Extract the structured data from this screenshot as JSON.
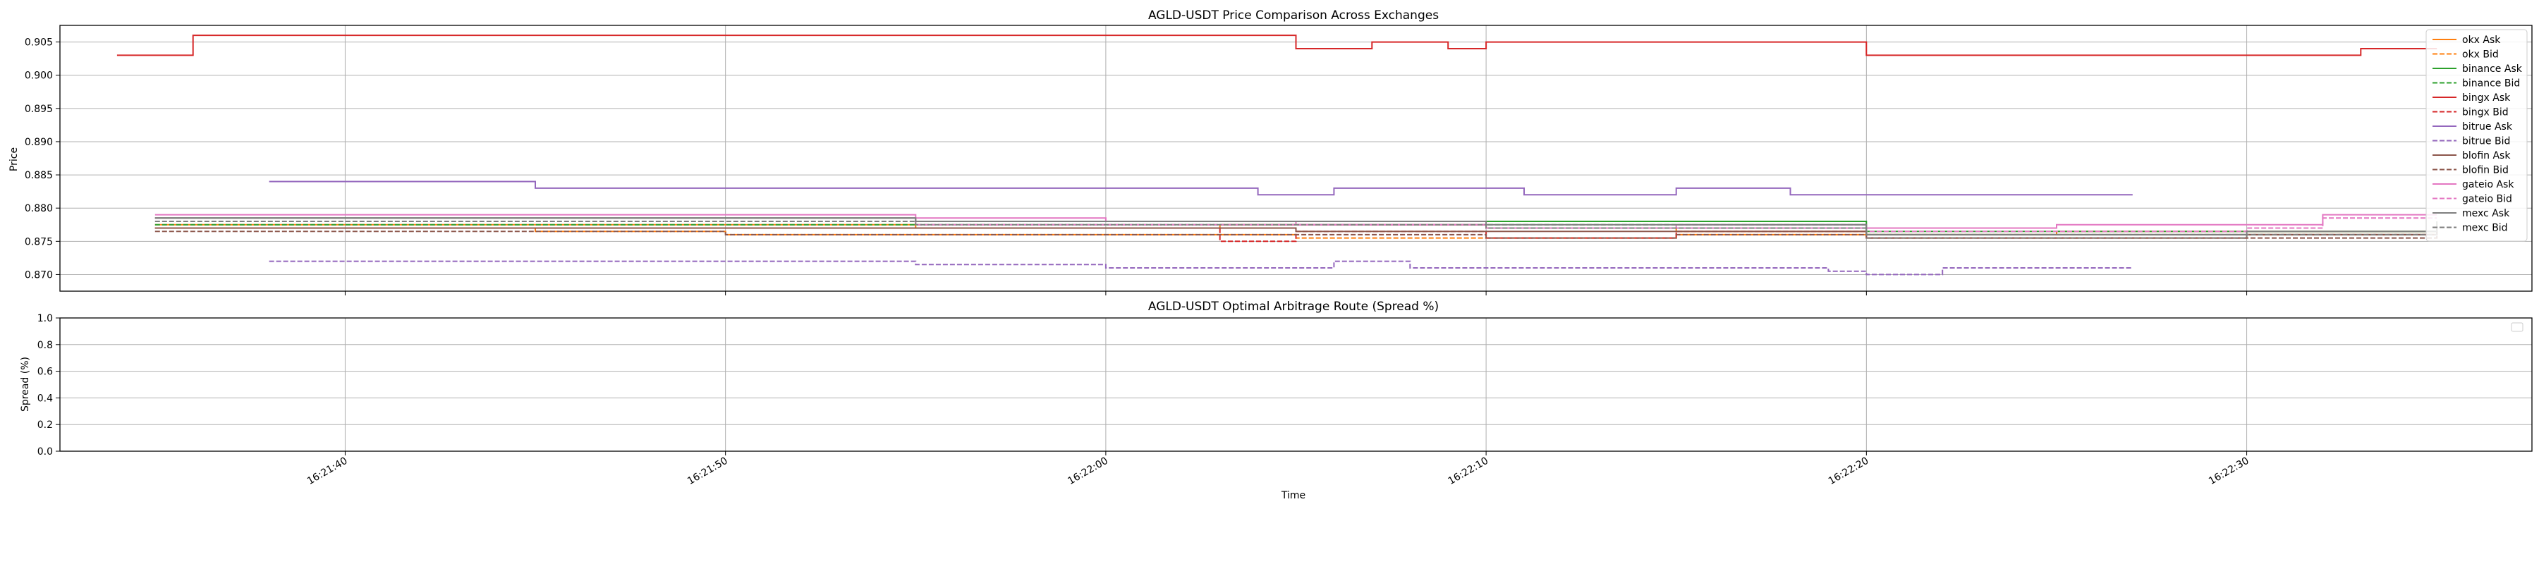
{
  "chart_data": [
    {
      "type": "line",
      "title": "AGLD-USDT Price Comparison Across Exchanges",
      "xlabel": "",
      "ylabel": "Price",
      "xlim": [
        "16:21:32.5",
        "16:22:37.5"
      ],
      "ylim": [
        0.8675,
        0.9075
      ],
      "grid": true,
      "legend_position": "top-right",
      "x_ticks": [
        "16:21:40",
        "16:21:50",
        "16:22:00",
        "16:22:10",
        "16:22:20",
        "16:22:30"
      ],
      "y_ticks": [
        "0.870",
        "0.875",
        "0.880",
        "0.885",
        "0.890",
        "0.895",
        "0.900",
        "0.905"
      ],
      "series": [
        {
          "name": "okx Ask",
          "color": "#ff7f0e",
          "style": "solid",
          "x": [
            "16:21:35",
            "16:21:45",
            "16:21:55",
            "16:22:03",
            "16:22:10",
            "16:22:15",
            "16:22:20",
            "16:22:25",
            "16:22:30",
            "16:22:35"
          ],
          "y": [
            0.8775,
            0.8775,
            0.877,
            0.8775,
            0.877,
            0.8765,
            0.876,
            0.8765,
            0.8765,
            0.8775
          ]
        },
        {
          "name": "okx Bid",
          "color": "#ff7f0e",
          "style": "dashed",
          "x": [
            "16:21:35",
            "16:21:45",
            "16:21:50",
            "16:22:00",
            "16:22:05",
            "16:22:10",
            "16:22:15",
            "16:22:20",
            "16:22:30",
            "16:22:35"
          ],
          "y": [
            0.877,
            0.8765,
            0.876,
            0.876,
            0.8755,
            0.8755,
            0.876,
            0.8755,
            0.876,
            0.877
          ]
        },
        {
          "name": "binance Ask",
          "color": "#2ca02c",
          "style": "solid",
          "x": [
            "16:21:35",
            "16:21:45",
            "16:21:55",
            "16:22:00",
            "16:22:05",
            "16:22:19",
            "16:22:20",
            "16:22:30",
            "16:22:35"
          ],
          "y": [
            0.8785,
            0.8785,
            0.878,
            0.878,
            0.878,
            0.878,
            0.8765,
            0.8765,
            0.878
          ]
        },
        {
          "name": "binance Bid",
          "color": "#2ca02c",
          "style": "dashed",
          "x": [
            "16:21:35",
            "16:21:45",
            "16:21:55",
            "16:22:05",
            "16:22:19",
            "16:22:20",
            "16:22:30",
            "16:22:35"
          ],
          "y": [
            0.8775,
            0.8775,
            0.8775,
            0.8775,
            0.8775,
            0.876,
            0.876,
            0.8775
          ]
        },
        {
          "name": "bingx Ask",
          "color": "#d62728",
          "style": "solid",
          "x": [
            "16:21:34",
            "16:21:36",
            "16:21:45",
            "16:21:55",
            "16:22:04",
            "16:22:05",
            "16:22:06",
            "16:22:07",
            "16:22:08",
            "16:22:09",
            "16:22:10",
            "16:22:15",
            "16:22:19",
            "16:22:20",
            "16:22:30",
            "16:22:33",
            "16:22:35"
          ],
          "y": [
            0.903,
            0.906,
            0.906,
            0.906,
            0.906,
            0.904,
            0.904,
            0.905,
            0.905,
            0.904,
            0.905,
            0.905,
            0.905,
            0.903,
            0.903,
            0.904,
            0.904
          ]
        },
        {
          "name": "bingx Bid",
          "color": "#d62728",
          "style": "dashed",
          "x": [
            "16:21:35",
            "16:21:45",
            "16:21:55",
            "16:22:02",
            "16:22:03",
            "16:22:04",
            "16:22:05",
            "16:22:10",
            "16:22:14",
            "16:22:15",
            "16:22:20",
            "16:22:30",
            "16:22:35"
          ],
          "y": [
            0.877,
            0.877,
            0.877,
            0.877,
            0.875,
            0.875,
            0.8765,
            0.8755,
            0.8755,
            0.8765,
            0.8755,
            0.876,
            0.877
          ]
        },
        {
          "name": "bitrue Ask",
          "color": "#9467bd",
          "style": "solid",
          "x": [
            "16:21:38",
            "16:21:45",
            "16:21:55",
            "16:22:04",
            "16:22:06",
            "16:22:08",
            "16:22:11",
            "16:22:15",
            "16:22:18",
            "16:22:25",
            "16:22:27"
          ],
          "y": [
            0.884,
            0.883,
            0.883,
            0.882,
            0.883,
            0.883,
            0.882,
            0.883,
            0.882,
            0.882,
            0.882
          ]
        },
        {
          "name": "bitrue Bid",
          "color": "#9467bd",
          "style": "dashed",
          "x": [
            "16:21:38",
            "16:21:45",
            "16:21:55",
            "16:22:00",
            "16:22:06",
            "16:22:08",
            "16:22:15",
            "16:22:19",
            "16:22:20",
            "16:22:22",
            "16:22:27"
          ],
          "y": [
            0.872,
            0.872,
            0.8715,
            0.871,
            0.872,
            0.871,
            0.871,
            0.8705,
            0.87,
            0.871,
            0.871
          ]
        },
        {
          "name": "blofin Ask",
          "color": "#8c564b",
          "style": "solid",
          "x": [
            "16:21:35",
            "16:21:45",
            "16:21:55",
            "16:22:05",
            "16:22:10",
            "16:22:15",
            "16:22:20",
            "16:22:30",
            "16:22:35"
          ],
          "y": [
            0.877,
            0.877,
            0.877,
            0.8765,
            0.8765,
            0.8765,
            0.876,
            0.876,
            0.8775
          ]
        },
        {
          "name": "blofin Bid",
          "color": "#8c564b",
          "style": "dashed",
          "x": [
            "16:21:35",
            "16:21:45",
            "16:21:50",
            "16:22:00",
            "16:22:05",
            "16:22:10",
            "16:22:15",
            "16:22:20",
            "16:22:30",
            "16:22:35"
          ],
          "y": [
            0.8765,
            0.8765,
            0.876,
            0.876,
            0.876,
            0.8755,
            0.876,
            0.8755,
            0.8755,
            0.8765
          ]
        },
        {
          "name": "gateio Ask",
          "color": "#e377c2",
          "style": "solid",
          "x": [
            "16:21:35",
            "16:21:45",
            "16:21:55",
            "16:22:00",
            "16:22:05",
            "16:22:10",
            "16:22:15",
            "16:22:20",
            "16:22:25",
            "16:22:30",
            "16:22:32",
            "16:22:35"
          ],
          "y": [
            0.879,
            0.879,
            0.8785,
            0.878,
            0.8775,
            0.877,
            0.8775,
            0.877,
            0.8775,
            0.8775,
            0.879,
            0.879
          ]
        },
        {
          "name": "gateio Bid",
          "color": "#e377c2",
          "style": "dashed",
          "x": [
            "16:21:35",
            "16:21:45",
            "16:21:55",
            "16:22:05",
            "16:22:10",
            "16:22:15",
            "16:22:20",
            "16:22:30",
            "16:22:32",
            "16:22:35"
          ],
          "y": [
            0.8785,
            0.8785,
            0.8775,
            0.8775,
            0.877,
            0.877,
            0.8765,
            0.877,
            0.8785,
            0.8785
          ]
        },
        {
          "name": "mexc Ask",
          "color": "#7f7f7f",
          "style": "solid",
          "x": [
            "16:21:35",
            "16:21:45",
            "16:21:55",
            "16:22:05",
            "16:22:10",
            "16:22:15",
            "16:22:20",
            "16:22:30",
            "16:22:35"
          ],
          "y": [
            0.8785,
            0.8785,
            0.878,
            0.878,
            0.8775,
            0.8775,
            0.876,
            0.8765,
            0.878
          ]
        },
        {
          "name": "mexc Bid",
          "color": "#7f7f7f",
          "style": "dashed",
          "x": [
            "16:21:35",
            "16:21:45",
            "16:21:55",
            "16:22:05",
            "16:22:10",
            "16:22:15",
            "16:22:20",
            "16:22:30",
            "16:22:35"
          ],
          "y": [
            0.878,
            0.878,
            0.8775,
            0.8775,
            0.877,
            0.877,
            0.8755,
            0.876,
            0.8775
          ]
        }
      ]
    },
    {
      "type": "line",
      "title": "AGLD-USDT Optimal Arbitrage Route (Spread %)",
      "xlabel": "Time",
      "ylabel": "Spread (%)",
      "ylim": [
        0.0,
        1.0
      ],
      "grid": true,
      "legend_position": "top-right",
      "x_ticks": [
        "16:21:40",
        "16:21:50",
        "16:22:00",
        "16:22:10",
        "16:22:20",
        "16:22:30"
      ],
      "y_ticks": [
        "0.0",
        "0.2",
        "0.4",
        "0.6",
        "0.8",
        "1.0"
      ],
      "series": []
    }
  ]
}
